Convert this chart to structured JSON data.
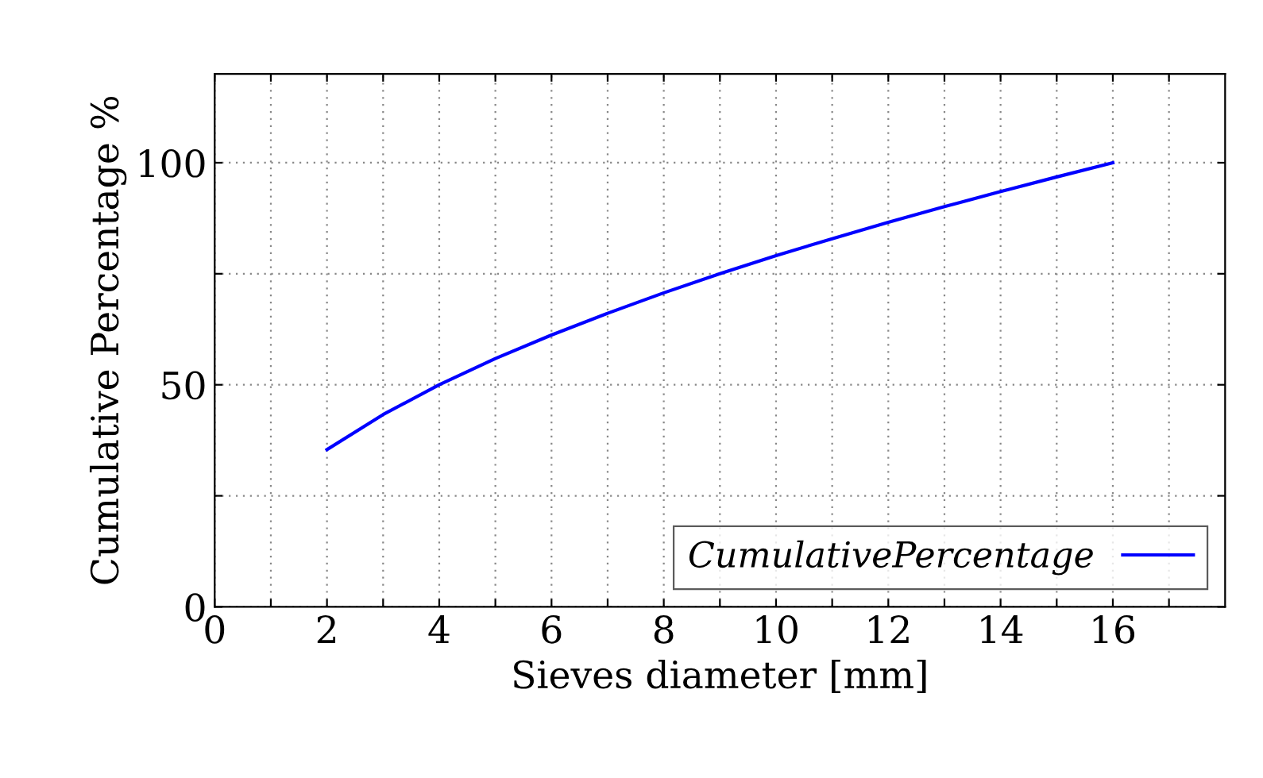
{
  "chart_data": {
    "type": "line",
    "xlabel": "Sieves diameter [mm]",
    "ylabel": "Cumulative Percentage %",
    "x": [
      2,
      3,
      4,
      5,
      6,
      7,
      8,
      9,
      10,
      11,
      12,
      13,
      14,
      15,
      16
    ],
    "series": [
      {
        "name": "CumulativePercentage",
        "color": "#0000ff",
        "values": [
          35.4,
          43.3,
          50,
          55.9,
          61.2,
          66.1,
          70.7,
          75,
          79.1,
          82.9,
          86.6,
          90.1,
          93.5,
          96.8,
          100
        ]
      }
    ],
    "xlim": [
      0,
      18
    ],
    "ylim": [
      0,
      120
    ],
    "xticks": [
      0,
      {
        "value": 1,
        "label": null
      },
      2,
      {
        "value": 3,
        "label": null
      },
      4,
      {
        "value": 5,
        "label": null
      },
      6,
      {
        "value": 7,
        "label": null
      },
      8,
      {
        "value": 9,
        "label": null
      },
      10,
      {
        "value": 11,
        "label": null
      },
      12,
      {
        "value": 13,
        "label": null
      },
      14,
      {
        "value": 15,
        "label": null
      },
      16,
      {
        "value": 17,
        "label": null
      }
    ],
    "yticks": [
      0,
      {
        "value": 25,
        "label": null
      },
      50,
      {
        "value": 75,
        "label": null
      },
      100
    ],
    "grid": true,
    "legend": "bottom right",
    "marker": "none",
    "line_style": "solid"
  }
}
